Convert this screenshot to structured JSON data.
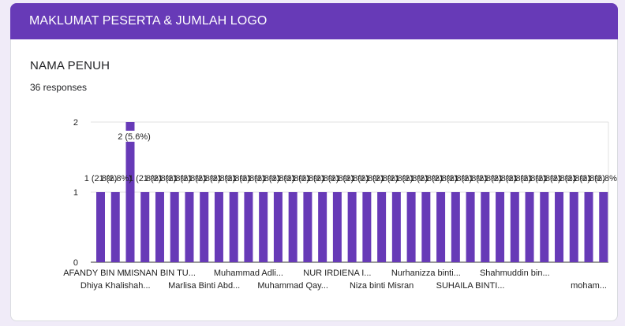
{
  "section": {
    "title": "MAKLUMAT PESERTA & JUMLAH LOGO"
  },
  "question": {
    "title": "NAMA PENUH",
    "responses": "36 responses"
  },
  "colors": {
    "header": "#673ab7",
    "bar": "#673ab7",
    "page_bg": "#f0ebf8"
  },
  "chart_data": {
    "type": "bar",
    "y_ticks": [
      "0",
      "1",
      "2"
    ],
    "ylim": [
      0,
      2
    ],
    "grid": true,
    "values": [
      1,
      1,
      2,
      1,
      1,
      1,
      1,
      1,
      1,
      1,
      1,
      1,
      1,
      1,
      1,
      1,
      1,
      1,
      1,
      1,
      1,
      1,
      1,
      1,
      1,
      1,
      1,
      1,
      1,
      1,
      1,
      1,
      1,
      1,
      1
    ],
    "bar_labels": [
      "1 (2.8%)",
      "1 (2.8%)",
      "2 (5.6%)",
      "1 (2.8%)",
      "1 (2.8%)",
      "1 (2.8%)",
      "1 (2.8%)",
      "1 (2.8%)",
      "1 (2.8%)",
      "1 (2.8%)",
      "1 (2.8%)",
      "1 (2.8%)",
      "1 (2.8%)",
      "1 (2.8%)",
      "1 (2.8%)",
      "1 (2.8%)",
      "1 (2.8%)",
      "1 (2.8%)",
      "1 (2.8%)",
      "1 (2.8%)",
      "1 (2.8%)",
      "1 (2.8%)",
      "1 (2.8%)",
      "1 (2.8%)",
      "1 (2.8%)",
      "1 (2.8%)",
      "1 (2.8%)",
      "1 (2.8%)",
      "1 (2.8%)",
      "1 (2.8%)",
      "1 (2.8%)",
      "1 (2.8%)",
      "1 (2.8%)",
      "1 (2.8%)",
      "1 (2.8%)"
    ],
    "bar_labels_shown": [
      "1 (2.8%)",
      "1 (2.8%)",
      "2 (5.6%)",
      "1 (2.8%)",
      "1 (2.8%)",
      "1 (2.8%)",
      "1 (2.8%)",
      "1 (2.8%)",
      "1 (2.8%)",
      "1 (2.8%)",
      "1 (2.8%)",
      "1 (2.8%)",
      "1 (2.8%)",
      "1 (2.8%)",
      "1 (2.8%)",
      "1 (2.8%)",
      "1 (2.8%)",
      "1 (2.8%)",
      "1 (2.8%)",
      "1 (2.8%)",
      "1 (2.8%)",
      "1 (2.8%)",
      "1 (2.8%)",
      "1 (2.8%)",
      "1 (2.8%)",
      "1 (2.8%)",
      "1 (2.8%)",
      "1 (2.8%)",
      "1 (2.8%)",
      "1 (2.8%)",
      "1 (2.8%)",
      "1 (2.8%)",
      "1 (2.8%)",
      "1 (2.8%)",
      "1 (2.8%)"
    ],
    "category_labels": [
      {
        "bar": 0,
        "row": 1,
        "text": "AFANDY BIN M..."
      },
      {
        "bar": 1,
        "row": 2,
        "text": "Dhiya Khalishah..."
      },
      {
        "bar": 4,
        "row": 1,
        "text": "MISNAN BIN TU..."
      },
      {
        "bar": 7,
        "row": 2,
        "text": "Marlisa Binti Abd..."
      },
      {
        "bar": 10,
        "row": 1,
        "text": "Muhammad Adli..."
      },
      {
        "bar": 13,
        "row": 2,
        "text": "Muhammad Qay..."
      },
      {
        "bar": 16,
        "row": 1,
        "text": "NUR IRDIENA I..."
      },
      {
        "bar": 19,
        "row": 2,
        "text": "Niza binti Misran"
      },
      {
        "bar": 22,
        "row": 1,
        "text": "Nurhanizza binti..."
      },
      {
        "bar": 25,
        "row": 2,
        "text": "SUHAILA BINTI..."
      },
      {
        "bar": 28,
        "row": 1,
        "text": "Shahmuddin bin..."
      },
      {
        "bar": 33,
        "row": 2,
        "text": "moham..."
      }
    ]
  }
}
